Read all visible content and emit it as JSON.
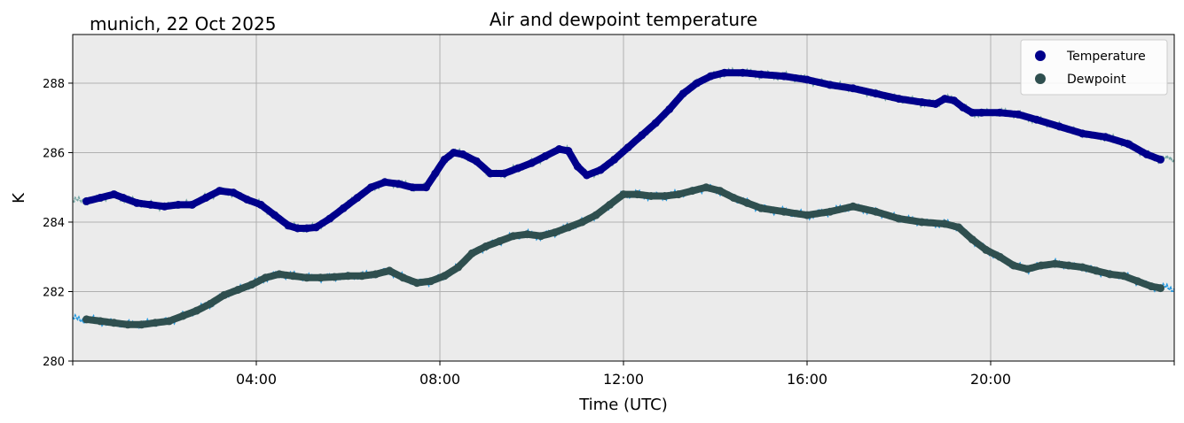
{
  "chart_data": {
    "type": "scatter",
    "title": "Air and dewpoint temperature",
    "subtitle": "munich, 22 Oct 2025",
    "xlabel": "Time (UTC)",
    "ylabel": "K",
    "xlim": [
      0,
      24
    ],
    "ylim": [
      280,
      289.4
    ],
    "grid": true,
    "legend_position": "top-right",
    "background_color": "#ebebeb",
    "xticks": [
      {
        "value": 4,
        "label": "04:00"
      },
      {
        "value": 8,
        "label": "08:00"
      },
      {
        "value": 12,
        "label": "12:00"
      },
      {
        "value": 16,
        "label": "16:00"
      },
      {
        "value": 20,
        "label": "20:00"
      }
    ],
    "yticks": [
      280,
      282,
      284,
      286,
      288
    ],
    "series": [
      {
        "name": "Temperature",
        "color": "#00008b",
        "raw_color": "#7aa9a7",
        "x": [
          0.3,
          0.6,
          0.9,
          1.1,
          1.4,
          1.7,
          2.0,
          2.3,
          2.6,
          2.9,
          3.2,
          3.5,
          3.8,
          4.1,
          4.4,
          4.7,
          4.9,
          5.1,
          5.3,
          5.6,
          5.9,
          6.2,
          6.5,
          6.8,
          7.1,
          7.4,
          7.7,
          7.9,
          8.1,
          8.3,
          8.5,
          8.8,
          9.1,
          9.4,
          9.7,
          10.0,
          10.3,
          10.6,
          10.8,
          11.0,
          11.2,
          11.5,
          11.8,
          12.1,
          12.4,
          12.7,
          13.0,
          13.3,
          13.6,
          13.9,
          14.2,
          14.6,
          15.0,
          15.5,
          16.0,
          16.5,
          17.0,
          17.5,
          18.0,
          18.5,
          18.8,
          19.0,
          19.2,
          19.4,
          19.6,
          19.8,
          20.2,
          20.6,
          21.0,
          21.5,
          22.0,
          22.5,
          23.0,
          23.4,
          23.7
        ],
        "values": [
          284.6,
          284.7,
          284.8,
          284.7,
          284.55,
          284.5,
          284.45,
          284.5,
          284.5,
          284.7,
          284.9,
          284.85,
          284.65,
          284.5,
          284.2,
          283.9,
          283.82,
          283.82,
          283.85,
          284.1,
          284.4,
          284.7,
          285.0,
          285.15,
          285.1,
          285.0,
          285.0,
          285.4,
          285.8,
          286.0,
          285.95,
          285.75,
          285.4,
          285.4,
          285.55,
          285.7,
          285.9,
          286.1,
          286.05,
          285.6,
          285.35,
          285.5,
          285.8,
          286.15,
          286.5,
          286.85,
          287.25,
          287.7,
          288.0,
          288.2,
          288.3,
          288.3,
          288.25,
          288.2,
          288.1,
          287.95,
          287.85,
          287.7,
          287.55,
          287.45,
          287.4,
          287.55,
          287.5,
          287.3,
          287.15,
          287.15,
          287.15,
          287.1,
          286.95,
          286.75,
          286.55,
          286.45,
          286.25,
          285.95,
          285.8
        ]
      },
      {
        "name": "Dewpoint",
        "color": "#2f4f4f",
        "raw_color": "#2a9bdf",
        "x": [
          0.3,
          0.6,
          0.9,
          1.2,
          1.5,
          1.8,
          2.1,
          2.4,
          2.7,
          3.0,
          3.3,
          3.6,
          3.9,
          4.2,
          4.5,
          4.8,
          5.1,
          5.4,
          5.7,
          6.0,
          6.3,
          6.6,
          6.9,
          7.2,
          7.5,
          7.8,
          8.1,
          8.4,
          8.7,
          9.0,
          9.3,
          9.6,
          9.9,
          10.2,
          10.5,
          10.8,
          11.1,
          11.4,
          11.7,
          12.0,
          12.3,
          12.6,
          12.9,
          13.2,
          13.5,
          13.8,
          14.1,
          14.4,
          14.7,
          15.0,
          15.5,
          16.0,
          16.5,
          17.0,
          17.5,
          18.0,
          18.5,
          19.0,
          19.3,
          19.6,
          19.9,
          20.2,
          20.5,
          20.8,
          21.1,
          21.4,
          21.7,
          22.0,
          22.3,
          22.6,
          22.9,
          23.2,
          23.5,
          23.7
        ],
        "values": [
          281.2,
          281.15,
          281.1,
          281.05,
          281.05,
          281.1,
          281.15,
          281.3,
          281.45,
          281.65,
          281.9,
          282.05,
          282.2,
          282.4,
          282.5,
          282.45,
          282.4,
          282.4,
          282.42,
          282.45,
          282.45,
          282.5,
          282.6,
          282.4,
          282.25,
          282.3,
          282.45,
          282.7,
          283.1,
          283.3,
          283.45,
          283.6,
          283.65,
          283.6,
          283.7,
          283.85,
          284.0,
          284.2,
          284.5,
          284.8,
          284.8,
          284.75,
          284.75,
          284.8,
          284.9,
          285.0,
          284.9,
          284.7,
          284.55,
          284.4,
          284.3,
          284.2,
          284.3,
          284.45,
          284.3,
          284.1,
          284.0,
          283.95,
          283.85,
          283.5,
          283.2,
          283.0,
          282.75,
          282.65,
          282.75,
          282.8,
          282.75,
          282.7,
          282.6,
          282.5,
          282.45,
          282.3,
          282.15,
          282.1
        ]
      }
    ]
  }
}
